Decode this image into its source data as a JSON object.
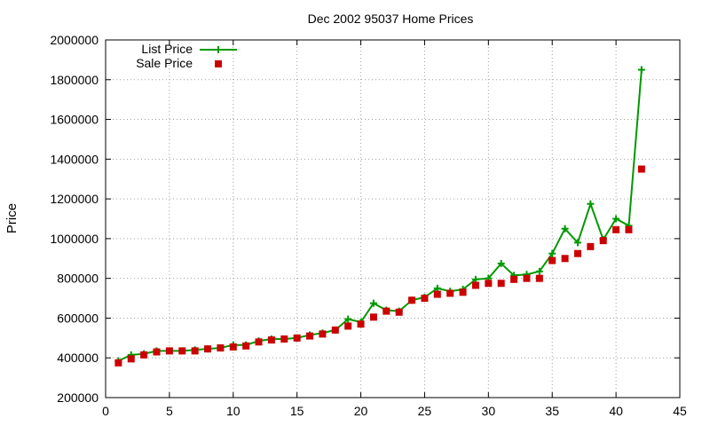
{
  "chart_data": {
    "type": "line",
    "title": "Dec 2002 95037 Home Prices",
    "xlabel": "",
    "ylabel": "Price",
    "xlim": [
      0,
      45
    ],
    "ylim": [
      200000,
      2000000
    ],
    "xticks": [
      0,
      5,
      10,
      15,
      20,
      25,
      30,
      35,
      40,
      45
    ],
    "yticks": [
      200000,
      400000,
      600000,
      800000,
      1000000,
      1200000,
      1400000,
      1600000,
      1800000,
      2000000
    ],
    "grid": true,
    "legend_position": "top-left",
    "x": [
      1,
      2,
      3,
      4,
      5,
      6,
      7,
      8,
      9,
      10,
      11,
      12,
      13,
      14,
      15,
      16,
      17,
      18,
      19,
      20,
      21,
      22,
      23,
      24,
      25,
      26,
      27,
      28,
      29,
      30,
      31,
      32,
      33,
      34,
      35,
      36,
      37,
      38,
      39,
      40,
      41,
      42
    ],
    "series": [
      {
        "name": "List Price",
        "style": "linespoints",
        "color": "#009900",
        "values": [
          385000,
          415000,
          420000,
          435000,
          435000,
          435000,
          440000,
          445000,
          450000,
          465000,
          465000,
          485000,
          495000,
          495000,
          500000,
          515000,
          525000,
          540000,
          595000,
          580000,
          675000,
          640000,
          635000,
          690000,
          705000,
          750000,
          735000,
          745000,
          795000,
          800000,
          875000,
          815000,
          820000,
          835000,
          925000,
          1050000,
          980000,
          1175000,
          995000,
          1100000,
          1065000,
          1850000
        ]
      },
      {
        "name": "Sale Price",
        "style": "points",
        "color": "#cc0000",
        "values": [
          375000,
          395000,
          415000,
          430000,
          435000,
          435000,
          435000,
          445000,
          450000,
          455000,
          460000,
          480000,
          490000,
          495000,
          500000,
          510000,
          520000,
          540000,
          560000,
          570000,
          605000,
          635000,
          630000,
          690000,
          700000,
          720000,
          725000,
          730000,
          765000,
          775000,
          775000,
          795000,
          800000,
          800000,
          890000,
          900000,
          925000,
          960000,
          990000,
          1045000,
          1045000,
          1350000
        ]
      }
    ]
  }
}
